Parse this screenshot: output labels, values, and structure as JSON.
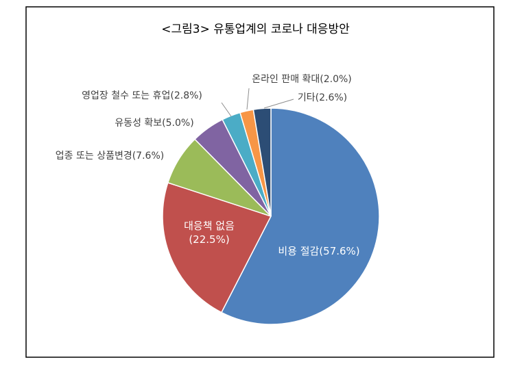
{
  "chart_data": {
    "type": "pie",
    "title": "<그림3> 유통업계의 코로나 대응방안",
    "values": [
      57.6,
      22.5,
      7.6,
      5.0,
      2.8,
      2.0,
      2.6
    ],
    "value_labels": [
      "비용 절감(57.6%)",
      "대응책 없음\n(22.5%)",
      "업종 또는 상품변경(7.6%)",
      "유동성 확보(5.0%)",
      "영업장 철수 또는 휴업(2.8%)",
      "온라인 판매 확대(2.0%)",
      "기타(2.6%)"
    ],
    "colors": [
      "#4f81bd",
      "#c0504d",
      "#9bbb59",
      "#8064a2",
      "#4bacc6",
      "#f79646",
      "#2c4d75"
    ]
  }
}
